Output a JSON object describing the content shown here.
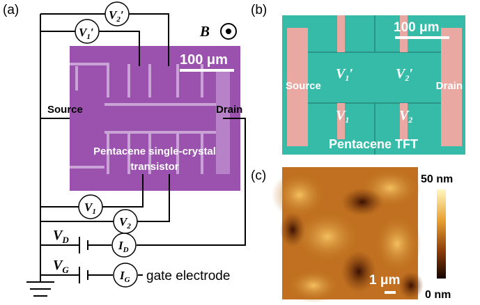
{
  "panel_a": {
    "label": "(a)",
    "magnet": "B",
    "scale_bar": "100 μm",
    "source": "Source",
    "drain": "Drain",
    "device_lines": [
      "Pentacene single-crystal",
      "transistor"
    ],
    "probes": {
      "v2_prime": {
        "main": "V",
        "sub": "2",
        "prime": "′"
      },
      "v1_prime": {
        "main": "V",
        "sub": "1",
        "prime": "′"
      },
      "v1": {
        "main": "V",
        "sub": "1"
      },
      "v2": {
        "main": "V",
        "sub": "2"
      }
    },
    "vd": {
      "main": "V",
      "sub": "D"
    },
    "id": {
      "main": "I",
      "sub": "D"
    },
    "vg": {
      "main": "V",
      "sub": "G"
    },
    "ig": {
      "main": "I",
      "sub": "G"
    },
    "gate": "gate electrode"
  },
  "panel_b": {
    "label": "(b)",
    "scale_bar": "100 μm",
    "source": "Source",
    "drain": "Drain",
    "v1_prime": {
      "main": "V",
      "sub": "1",
      "prime": "′"
    },
    "v2_prime": {
      "main": "V",
      "sub": "2",
      "prime": "′"
    },
    "v1": {
      "main": "V",
      "sub": "1"
    },
    "v2": {
      "main": "V",
      "sub": "2"
    },
    "caption": "Pentacene TFT"
  },
  "panel_c": {
    "label": "(c)",
    "colorbar_top": "50 nm",
    "colorbar_bottom": "0 nm",
    "scale_bar": "1 μm"
  }
}
